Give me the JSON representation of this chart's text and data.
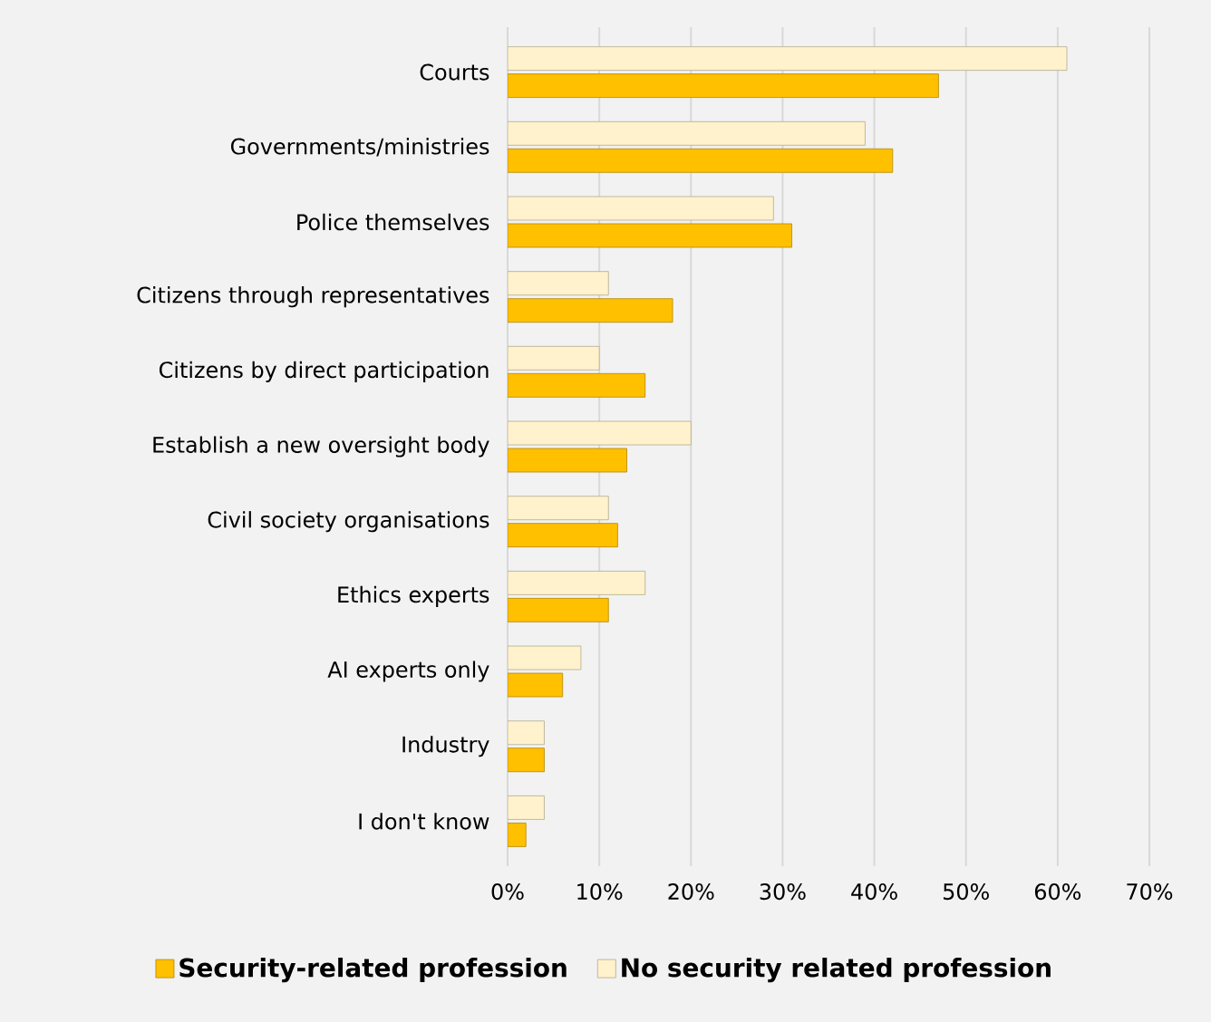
{
  "chart_data": {
    "type": "bar",
    "orientation": "horizontal",
    "categories": [
      "Courts",
      "Governments/ministries",
      "Police themselves",
      "Citizens through representatives",
      "Citizens by direct participation",
      "Establish a new oversight body",
      "Civil society organisations",
      "Ethics experts",
      "AI experts only",
      "Industry",
      "I don't know"
    ],
    "series": [
      {
        "name": "Security-related profession",
        "color": "#ffc000",
        "values": [
          47,
          42,
          31,
          18,
          15,
          13,
          12,
          11,
          6,
          4,
          2
        ]
      },
      {
        "name": "No security related profession",
        "color": "#fff2cc",
        "values": [
          61,
          39,
          29,
          11,
          10,
          20,
          11,
          15,
          8,
          4,
          4
        ]
      }
    ],
    "xlim": [
      0,
      70
    ],
    "xticks": [
      {
        "value": 0,
        "label": "0%"
      },
      {
        "value": 10,
        "label": "10%"
      },
      {
        "value": 20,
        "label": "20%"
      },
      {
        "value": 30,
        "label": "30%"
      },
      {
        "value": 40,
        "label": "40%"
      },
      {
        "value": 50,
        "label": "50%"
      },
      {
        "value": 60,
        "label": "60%"
      },
      {
        "value": 70,
        "label": "70%"
      }
    ],
    "grid": "x",
    "legend": "bottom"
  }
}
